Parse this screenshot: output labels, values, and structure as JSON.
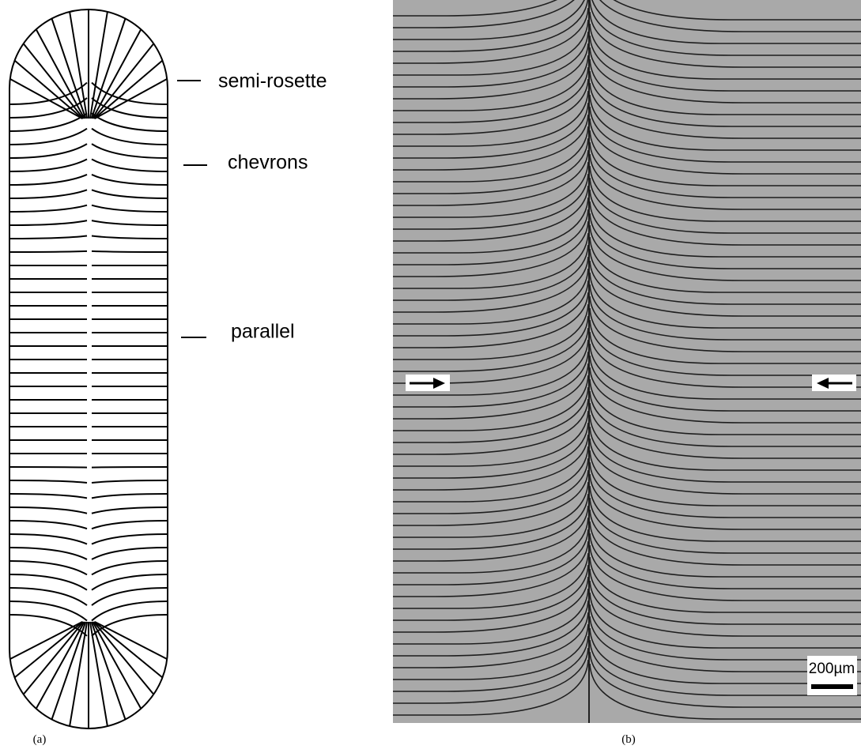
{
  "labels": {
    "semi_rosette": "semi-rosette",
    "chevrons": "chevrons",
    "parallel": "parallel"
  },
  "scale_bar": "200µm",
  "panels": [
    "(a)",
    "(b)"
  ]
}
